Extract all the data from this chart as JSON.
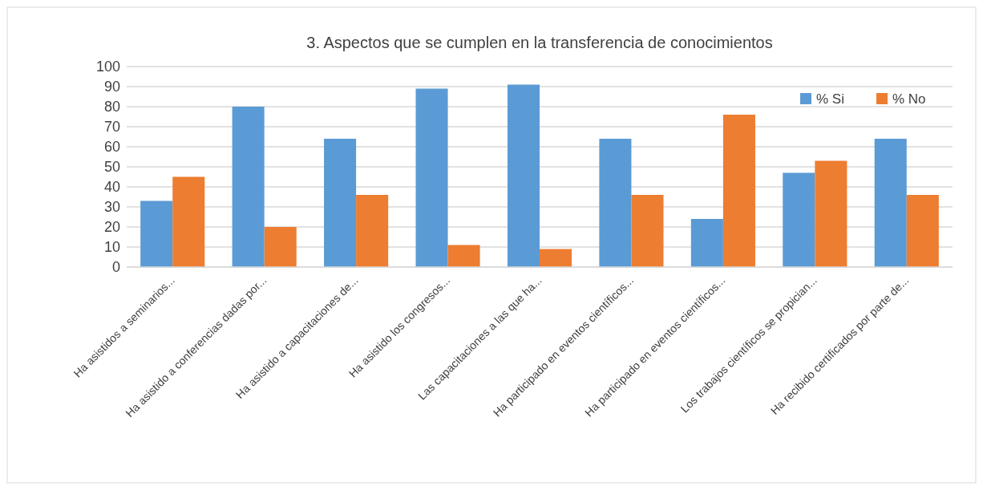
{
  "chart_data": {
    "type": "bar",
    "title": "3. Aspectos que se cumplen en la transferencia de conocimientos",
    "categories": [
      "Ha asistidos a seminarios...",
      "Ha asistido a conferencias dadas por...",
      "Ha asistido a capacitaciones de...",
      "Ha asistido los congresos...",
      "Las capacitaciones a las que ha...",
      "Ha participado en eventos científicos...",
      "Ha participado en eventos científicos...",
      "Los trabajos científicos se propician...",
      "Ha recibido certificados por parte de..."
    ],
    "series": [
      {
        "name": "% Si",
        "color": "#5b9bd5",
        "values": [
          33,
          80,
          64,
          89,
          91,
          64,
          24,
          47,
          64
        ]
      },
      {
        "name": "% No",
        "color": "#ed7d31",
        "values": [
          45,
          20,
          36,
          11,
          9,
          36,
          76,
          53,
          36
        ]
      }
    ],
    "ylim": [
      0,
      100
    ],
    "yticks": [
      0,
      10,
      20,
      30,
      40,
      50,
      60,
      70,
      80,
      90,
      100
    ],
    "grid": "y",
    "legend": "top right"
  }
}
